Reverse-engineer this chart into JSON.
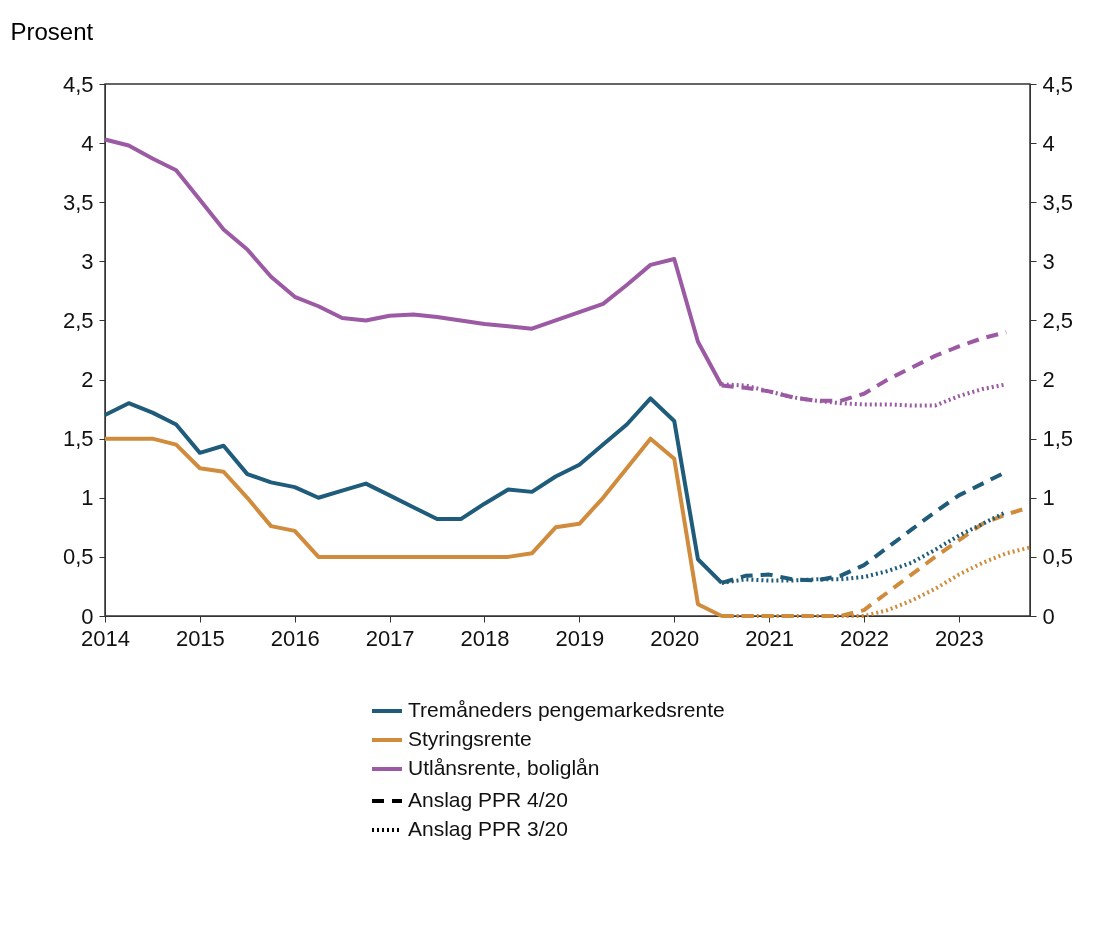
{
  "chart_data": {
    "type": "line",
    "ylabel": "Prosent",
    "annotations": [
      "Anslag PPR 4/20",
      "Anslag PPR 3/20"
    ],
    "legend": "bottom",
    "grid": false,
    "xlim": [
      2014,
      2023.75
    ],
    "xticks": [
      2014,
      2015,
      2016,
      2017,
      2018,
      2019,
      2020,
      2021,
      2022,
      2023
    ],
    "ylim": [
      0,
      4.5
    ],
    "yticks": [
      0,
      {
        "value": 0.5,
        "label": "0,5"
      },
      1,
      {
        "value": 1.5,
        "label": "1,5"
      },
      2,
      {
        "value": 2.5,
        "label": "2,5"
      },
      3,
      {
        "value": 3.5,
        "label": "3,5"
      },
      4,
      {
        "value": 4.5,
        "label": "4,5"
      }
    ],
    "y2lim": [
      0,
      4.5
    ],
    "y2ticks": [
      0,
      {
        "value": 0.5,
        "label": "0,5"
      },
      1,
      {
        "value": 1.5,
        "label": "1,5"
      },
      2,
      {
        "value": 2.5,
        "label": "2,5"
      },
      3,
      {
        "value": 3.5,
        "label": "3,5"
      },
      4,
      {
        "value": 4.5,
        "label": "4,5"
      }
    ],
    "x": [
      2014,
      2014.25,
      2014.5,
      2014.75,
      2015,
      2015.25,
      2015.5,
      2015.75,
      2016,
      2016.25,
      2016.5,
      2016.75,
      2017,
      2017.25,
      2017.5,
      2017.75,
      2018,
      2018.25,
      2018.5,
      2018.75,
      2019,
      2019.25,
      2019.5,
      2019.75,
      2020,
      2020.25,
      2020.5
    ],
    "series": [
      {
        "name": "Tremåneders pengemarkedsrente",
        "color": "#1f5b7a",
        "line_style": "solid",
        "values": [
          1.7,
          1.8,
          1.72,
          1.62,
          1.38,
          1.44,
          1.2,
          1.13,
          1.09,
          1.0,
          1.06,
          1.12,
          1.02,
          0.92,
          0.82,
          0.82,
          0.95,
          1.07,
          1.05,
          1.18,
          1.28,
          1.45,
          1.62,
          1.84,
          1.65,
          0.48,
          0.28
        ]
      },
      {
        "name": "Styringsrente",
        "color": "#d08c3c",
        "line_style": "solid",
        "values": [
          1.5,
          1.5,
          1.5,
          1.45,
          1.25,
          1.22,
          1.0,
          0.76,
          0.72,
          0.5,
          0.5,
          0.5,
          0.5,
          0.5,
          0.5,
          0.5,
          0.5,
          0.5,
          0.53,
          0.75,
          0.78,
          1.0,
          1.25,
          1.5,
          1.33,
          0.1,
          0.0
        ]
      },
      {
        "name": "Utlånsrente, boliglån",
        "color": "#9b5aa3",
        "line_style": "solid",
        "values": [
          4.03,
          3.98,
          3.87,
          3.77,
          3.52,
          3.27,
          3.1,
          2.87,
          2.7,
          2.62,
          2.52,
          2.5,
          2.54,
          2.55,
          2.53,
          2.5,
          2.47,
          2.45,
          2.43,
          2.5,
          2.57,
          2.64,
          2.8,
          2.97,
          3.02,
          2.32,
          1.95
        ]
      },
      {
        "color": "#1f5b7a",
        "line_style": "dashed",
        "x": [
          2020.5,
          2020.75,
          2021,
          2021.25,
          2021.5,
          2021.75,
          2022,
          2022.25,
          2022.5,
          2022.75,
          2023,
          2023.25,
          2023.5
        ],
        "values": [
          0.28,
          0.34,
          0.35,
          0.31,
          0.3,
          0.34,
          0.43,
          0.58,
          0.73,
          0.88,
          1.02,
          1.12,
          1.22
        ]
      },
      {
        "color": "#d08c3c",
        "line_style": "dashed",
        "x": [
          2020.5,
          2020.75,
          2021,
          2021.25,
          2021.5,
          2021.75,
          2022,
          2022.25,
          2022.5,
          2022.75,
          2023,
          2023.25,
          2023.5,
          2023.75
        ],
        "values": [
          0,
          0,
          0,
          0,
          0,
          0,
          0.05,
          0.2,
          0.35,
          0.5,
          0.64,
          0.78,
          0.86,
          0.92
        ]
      },
      {
        "color": "#9b5aa3",
        "line_style": "dashed",
        "x": [
          2020.5,
          2020.75,
          2021,
          2021.25,
          2021.5,
          2021.75,
          2022,
          2022.25,
          2022.5,
          2022.75,
          2023,
          2023.25,
          2023.5
        ],
        "values": [
          1.95,
          1.93,
          1.9,
          1.85,
          1.82,
          1.82,
          1.88,
          2.0,
          2.1,
          2.2,
          2.28,
          2.35,
          2.4
        ]
      },
      {
        "color": "#1f5b7a",
        "line_style": "dotted",
        "x": [
          2020.5,
          2020.75,
          2021,
          2021.25,
          2021.5,
          2021.75,
          2022,
          2022.25,
          2022.5,
          2022.75,
          2023,
          2023.25,
          2023.5
        ],
        "values": [
          0.28,
          0.31,
          0.3,
          0.3,
          0.31,
          0.31,
          0.33,
          0.38,
          0.45,
          0.56,
          0.68,
          0.78,
          0.88
        ]
      },
      {
        "color": "#d08c3c",
        "line_style": "dotted",
        "x": [
          2020.5,
          2020.75,
          2021,
          2021.25,
          2021.5,
          2021.75,
          2022,
          2022.25,
          2022.5,
          2022.75,
          2023,
          2023.25,
          2023.5,
          2023.75
        ],
        "values": [
          0,
          0,
          0,
          0,
          0,
          0,
          0,
          0.05,
          0.13,
          0.23,
          0.35,
          0.45,
          0.53,
          0.58
        ]
      },
      {
        "color": "#9b5aa3",
        "line_style": "dotted",
        "x": [
          2020.5,
          2020.75,
          2021,
          2021.25,
          2021.5,
          2021.75,
          2022,
          2022.25,
          2022.5,
          2022.75,
          2023,
          2023.25,
          2023.5
        ],
        "values": [
          1.96,
          1.95,
          1.9,
          1.85,
          1.82,
          1.8,
          1.79,
          1.79,
          1.78,
          1.78,
          1.86,
          1.92,
          1.96
        ]
      }
    ]
  }
}
